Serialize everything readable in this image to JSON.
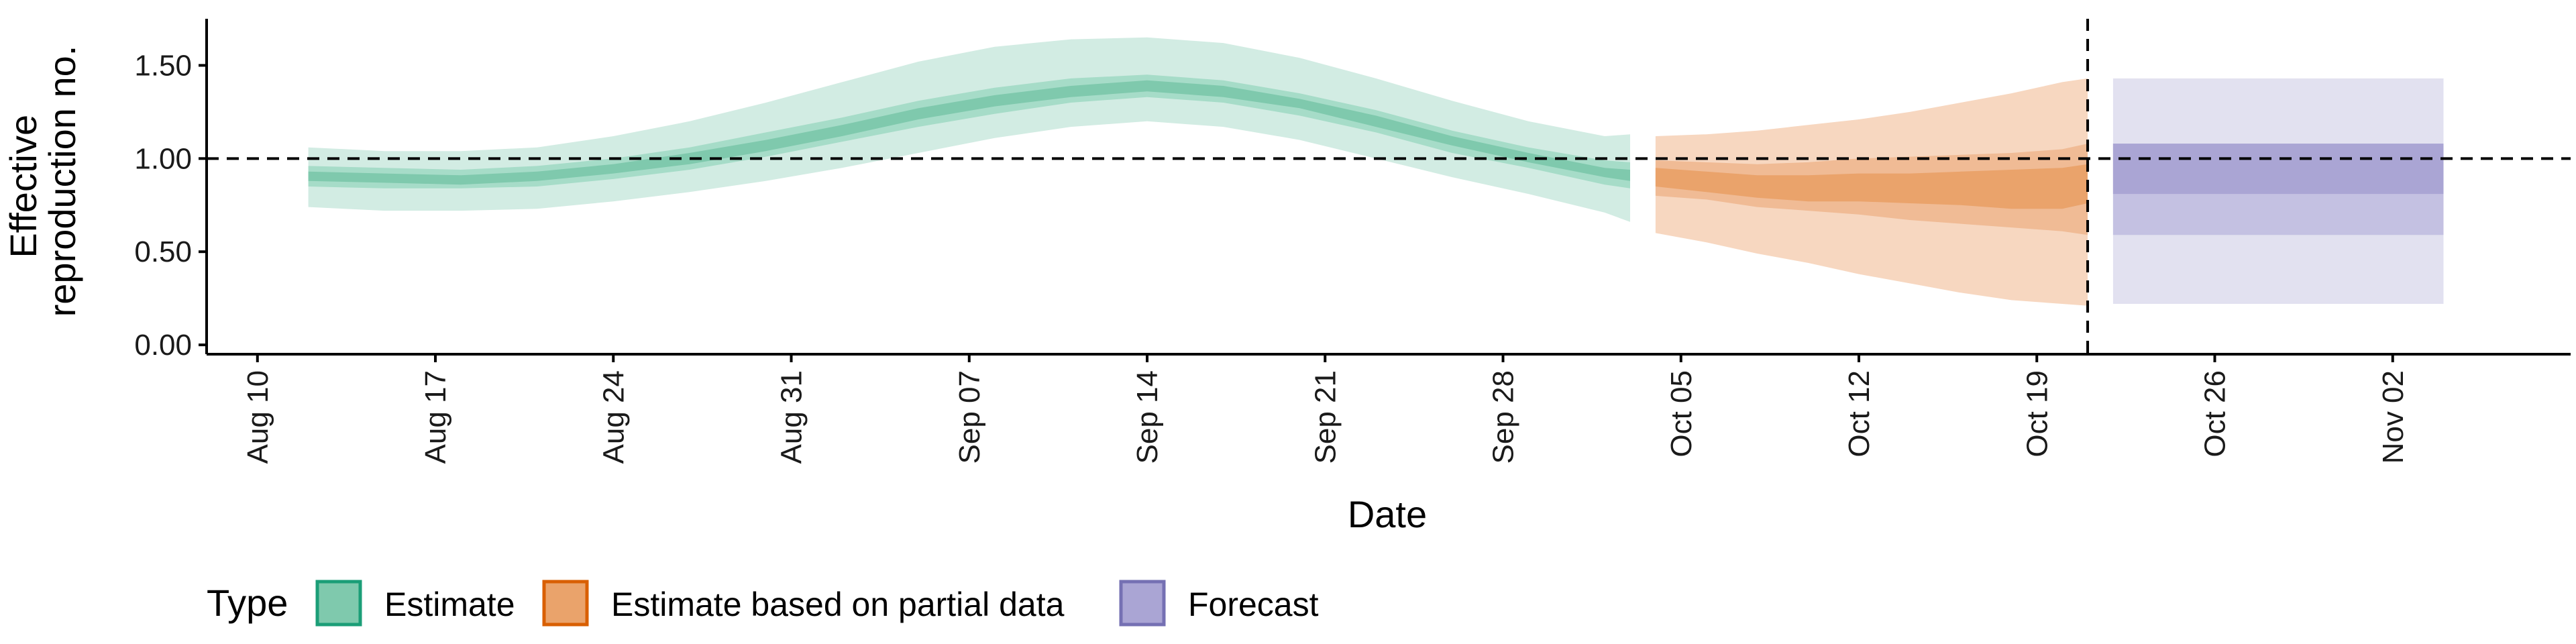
{
  "chart_data": {
    "type": "area",
    "xlabel": "Date",
    "ylabel_lines": [
      "Effective",
      "reproduction no."
    ],
    "ylim": [
      -0.05,
      1.75
    ],
    "yticks": [
      0.0,
      0.5,
      1.0,
      1.5
    ],
    "ytick_labels": [
      "0.00",
      "0.50",
      "1.00",
      "1.50"
    ],
    "x_domain": [
      "2020-08-08",
      "2020-11-09"
    ],
    "xticks": [
      "2020-08-10",
      "2020-08-17",
      "2020-08-24",
      "2020-08-31",
      "2020-09-07",
      "2020-09-14",
      "2020-09-21",
      "2020-09-28",
      "2020-10-05",
      "2020-10-12",
      "2020-10-19",
      "2020-10-26",
      "2020-11-02"
    ],
    "xtick_labels": [
      "Aug 10",
      "Aug 17",
      "Aug 24",
      "Aug 31",
      "Sep 07",
      "Sep 14",
      "Sep 21",
      "Sep 28",
      "Oct 05",
      "Oct 12",
      "Oct 19",
      "Oct 26",
      "Nov 02"
    ],
    "reference_line_y": 1.0,
    "vertical_line_x": "2020-10-21",
    "grid": false,
    "legend": {
      "title": "Type",
      "position": "bottom-left",
      "items": [
        {
          "label": "Estimate",
          "fill": "#7fc9ad",
          "stroke": "#1b9e77"
        },
        {
          "label": "Estimate based on partial data",
          "fill": "#eaa36b",
          "stroke": "#d95f02"
        },
        {
          "label": "Forecast",
          "fill": "#aaa5d4",
          "stroke": "#7570b3"
        }
      ]
    },
    "series": [
      {
        "name": "Estimate",
        "colors": {
          "outer": "#d2ece3",
          "mid": "#a6dcc8",
          "inner": "#7fc9ad"
        },
        "x": [
          "2020-08-12",
          "2020-08-15",
          "2020-08-18",
          "2020-08-21",
          "2020-08-24",
          "2020-08-27",
          "2020-08-30",
          "2020-09-02",
          "2020-09-05",
          "2020-09-08",
          "2020-09-11",
          "2020-09-14",
          "2020-09-17",
          "2020-09-20",
          "2020-09-23",
          "2020-09-26",
          "2020-09-29",
          "2020-10-02",
          "2020-10-03"
        ],
        "lower_90": [
          0.74,
          0.72,
          0.72,
          0.73,
          0.77,
          0.82,
          0.88,
          0.95,
          1.03,
          1.11,
          1.17,
          1.2,
          1.17,
          1.1,
          1.0,
          0.9,
          0.81,
          0.71,
          0.66
        ],
        "upper_90": [
          1.06,
          1.04,
          1.04,
          1.06,
          1.12,
          1.2,
          1.3,
          1.41,
          1.52,
          1.6,
          1.64,
          1.65,
          1.62,
          1.54,
          1.43,
          1.31,
          1.2,
          1.12,
          1.13
        ],
        "lower_50": [
          0.85,
          0.84,
          0.84,
          0.85,
          0.89,
          0.94,
          1.01,
          1.09,
          1.17,
          1.24,
          1.3,
          1.33,
          1.3,
          1.23,
          1.14,
          1.03,
          0.95,
          0.86,
          0.84
        ],
        "upper_50": [
          0.96,
          0.95,
          0.94,
          0.96,
          1.0,
          1.06,
          1.14,
          1.22,
          1.31,
          1.38,
          1.43,
          1.45,
          1.42,
          1.35,
          1.26,
          1.15,
          1.06,
          0.99,
          0.98
        ],
        "lower_20": [
          0.88,
          0.87,
          0.86,
          0.88,
          0.92,
          0.97,
          1.04,
          1.12,
          1.21,
          1.28,
          1.33,
          1.36,
          1.33,
          1.27,
          1.17,
          1.07,
          0.98,
          0.9,
          0.88
        ],
        "upper_20": [
          0.93,
          0.92,
          0.91,
          0.93,
          0.97,
          1.03,
          1.1,
          1.18,
          1.27,
          1.34,
          1.39,
          1.42,
          1.39,
          1.32,
          1.23,
          1.12,
          1.03,
          0.95,
          0.94
        ]
      },
      {
        "name": "Estimate based on partial data",
        "colors": {
          "outer": "#f7d7c0",
          "mid": "#f0bb95",
          "inner": "#eaa36b"
        },
        "x": [
          "2020-10-04",
          "2020-10-06",
          "2020-10-08",
          "2020-10-10",
          "2020-10-12",
          "2020-10-14",
          "2020-10-16",
          "2020-10-18",
          "2020-10-20",
          "2020-10-21"
        ],
        "lower_90": [
          0.6,
          0.55,
          0.49,
          0.44,
          0.38,
          0.33,
          0.28,
          0.24,
          0.22,
          0.21
        ],
        "upper_90": [
          1.12,
          1.13,
          1.15,
          1.18,
          1.21,
          1.25,
          1.3,
          1.35,
          1.41,
          1.43
        ],
        "lower_50": [
          0.8,
          0.78,
          0.74,
          0.72,
          0.7,
          0.67,
          0.65,
          0.63,
          0.61,
          0.59
        ],
        "upper_50": [
          0.99,
          0.98,
          0.97,
          0.98,
          1.0,
          1.01,
          1.02,
          1.03,
          1.05,
          1.08
        ],
        "lower_20": [
          0.85,
          0.82,
          0.79,
          0.77,
          0.77,
          0.76,
          0.75,
          0.73,
          0.73,
          0.76
        ],
        "upper_20": [
          0.95,
          0.93,
          0.91,
          0.91,
          0.92,
          0.92,
          0.93,
          0.94,
          0.95,
          0.97
        ]
      },
      {
        "name": "Forecast",
        "colors": {
          "outer": "#e2e1f0",
          "mid": "#c4c1e2",
          "inner": "#aaa5d4"
        },
        "x": [
          "2020-10-22",
          "2020-11-04"
        ],
        "lower_90": [
          0.22,
          0.22
        ],
        "upper_90": [
          1.43,
          1.43
        ],
        "lower_50": [
          0.59,
          0.59
        ],
        "upper_50": [
          1.08,
          1.08
        ],
        "lower_20": [
          0.81,
          0.81
        ],
        "upper_20": [
          1.08,
          1.08
        ]
      }
    ]
  }
}
